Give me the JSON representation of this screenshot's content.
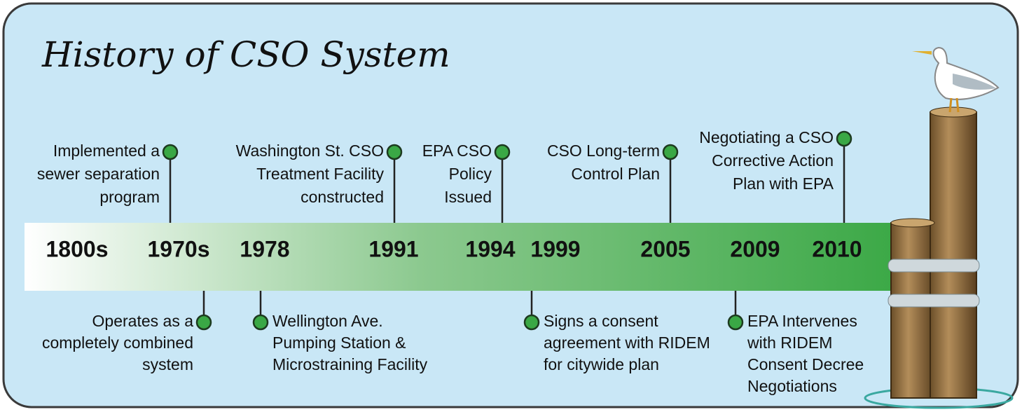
{
  "title": "History of CSO System",
  "years": [
    "1800s",
    "1970s",
    "1978",
    "1991",
    "1994",
    "1999",
    "2005",
    "2009",
    "2010"
  ],
  "events_above": [
    {
      "lines": [
        "Implemented a",
        "sewer separation",
        "program"
      ]
    },
    {
      "lines": [
        "Washington St. CSO",
        "Treatment Facility",
        "constructed"
      ]
    },
    {
      "lines": [
        "EPA CSO",
        "Policy",
        "Issued"
      ]
    },
    {
      "lines": [
        "CSO Long-term",
        "Control Plan"
      ]
    },
    {
      "lines": [
        "Negotiating a CSO",
        "Corrective Action",
        "Plan with EPA"
      ]
    }
  ],
  "events_below": [
    {
      "lines": [
        "Operates as a",
        "completely combined",
        "system"
      ]
    },
    {
      "lines": [
        "Wellington Ave.",
        "Pumping Station &",
        "Microstraining Facility"
      ]
    },
    {
      "lines": [
        "Signs a consent",
        "agreement with RIDEM",
        "for citywide plan"
      ]
    },
    {
      "lines": [
        "EPA Intervenes",
        "with RIDEM",
        "Consent Decree",
        "Negotiations"
      ]
    }
  ]
}
